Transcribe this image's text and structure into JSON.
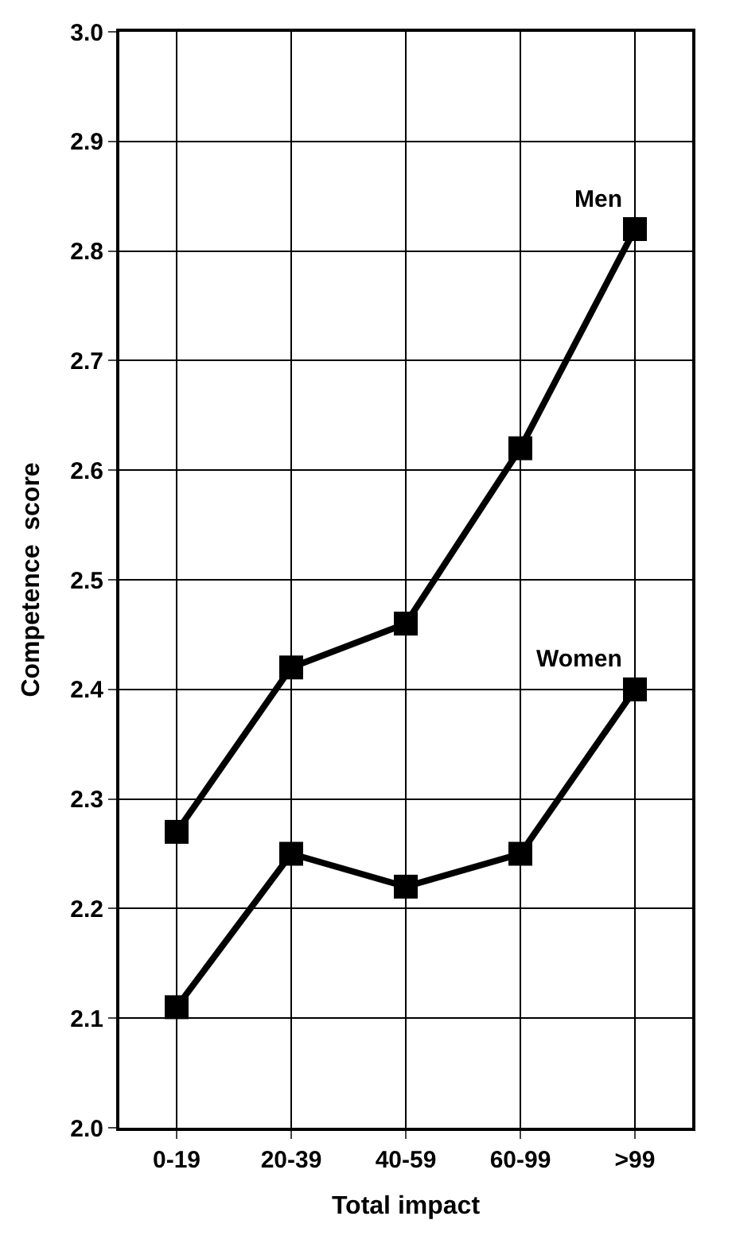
{
  "chart_data": {
    "type": "line",
    "xlabel": "Total impact",
    "ylabel": "Competence  score",
    "categories": [
      "0-19",
      "20-39",
      "40-59",
      "60-99",
      ">99"
    ],
    "series": [
      {
        "name": "Men",
        "color": "#000000",
        "values": [
          2.27,
          2.42,
          2.46,
          2.62,
          2.82
        ]
      },
      {
        "name": "Women",
        "color": "#000000",
        "values": [
          2.11,
          2.25,
          2.22,
          2.25,
          2.4
        ]
      }
    ],
    "ylim": [
      2.0,
      3.0
    ],
    "yticks": [
      {
        "value": 2.0,
        "label": "2.0"
      },
      2.1,
      2.2,
      2.3,
      2.4,
      2.5,
      2.6,
      2.7,
      2.8,
      2.9,
      {
        "value": 3.0,
        "label": "3.0"
      }
    ],
    "grid": true,
    "marker": "square",
    "line_style": "solid",
    "legend": false
  }
}
